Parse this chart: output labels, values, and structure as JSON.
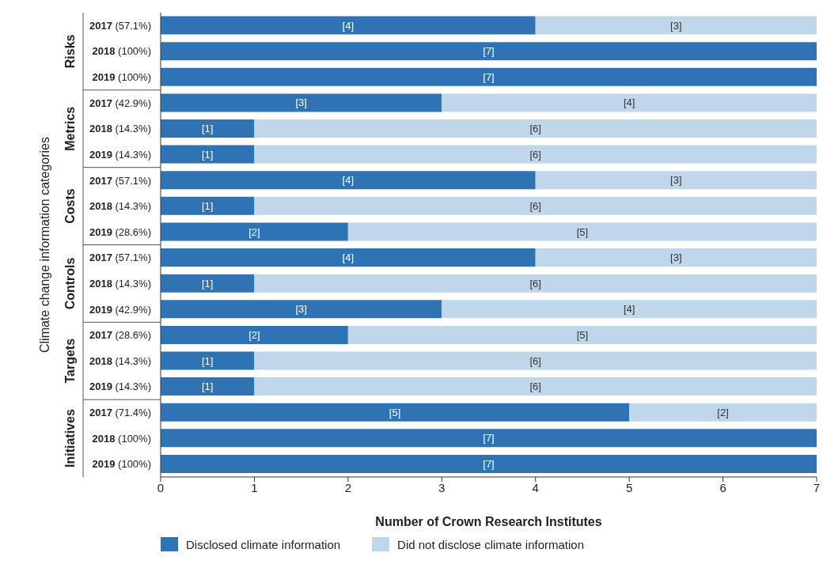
{
  "chart_data": {
    "type": "bar",
    "orientation": "horizontal",
    "stacked": true,
    "xlabel": "Number of Crown Research Institutes",
    "ylabel": "Climate change information categories",
    "annotations": [
      "Risks",
      "Metrics",
      "Costs",
      "Controls",
      "Targets",
      "Initiatives"
    ],
    "categories": [
      "2017 (57.1%)",
      "2018 (100%)",
      "2019 (100%)",
      "2017 (42.9%)",
      "2018 (14.3%)",
      "2019 (14.3%)",
      "2017 (57.1%)",
      "2018 (14.3%)",
      "2019 (28.6%)",
      "2017 (57.1%)",
      "2018 (14.3%)",
      "2019 (42.9%)",
      "2017 (28.6%)",
      "2018 (14.3%)",
      "2019 (14.3%)",
      "2017 (71.4%)",
      "2018 (100%)",
      "2019 (100%)"
    ],
    "series": [
      {
        "name": "Disclosed climate information",
        "color": "#3073b5",
        "values": [
          4,
          7,
          7,
          3,
          1,
          1,
          4,
          1,
          2,
          4,
          1,
          3,
          2,
          1,
          1,
          5,
          7,
          7
        ],
        "value_labels": [
          "[4]",
          "[7]",
          "[7]",
          "[3]",
          "[1]",
          "[1]",
          "[4]",
          "[1]",
          "[2]",
          "[4]",
          "[1]",
          "[3]",
          "[2]",
          "[1]",
          "[1]",
          "[5]",
          "[7]",
          "[7]"
        ]
      },
      {
        "name": "Did not disclose climate information",
        "color": "#bfd6eb",
        "values": [
          3,
          0,
          0,
          4,
          6,
          6,
          3,
          6,
          5,
          3,
          6,
          4,
          5,
          6,
          6,
          2,
          0,
          0
        ],
        "value_labels": [
          "[3]",
          null,
          null,
          "[4]",
          "[6]",
          "[6]",
          "[3]",
          "[6]",
          "[5]",
          "[3]",
          "[6]",
          "[4]",
          "[5]",
          "[6]",
          "[6]",
          "[2]",
          null,
          null
        ]
      }
    ],
    "xlim": [
      0,
      7
    ],
    "xticks": [
      0,
      1,
      2,
      3,
      4,
      5,
      6,
      7
    ],
    "legend": "bottom"
  }
}
